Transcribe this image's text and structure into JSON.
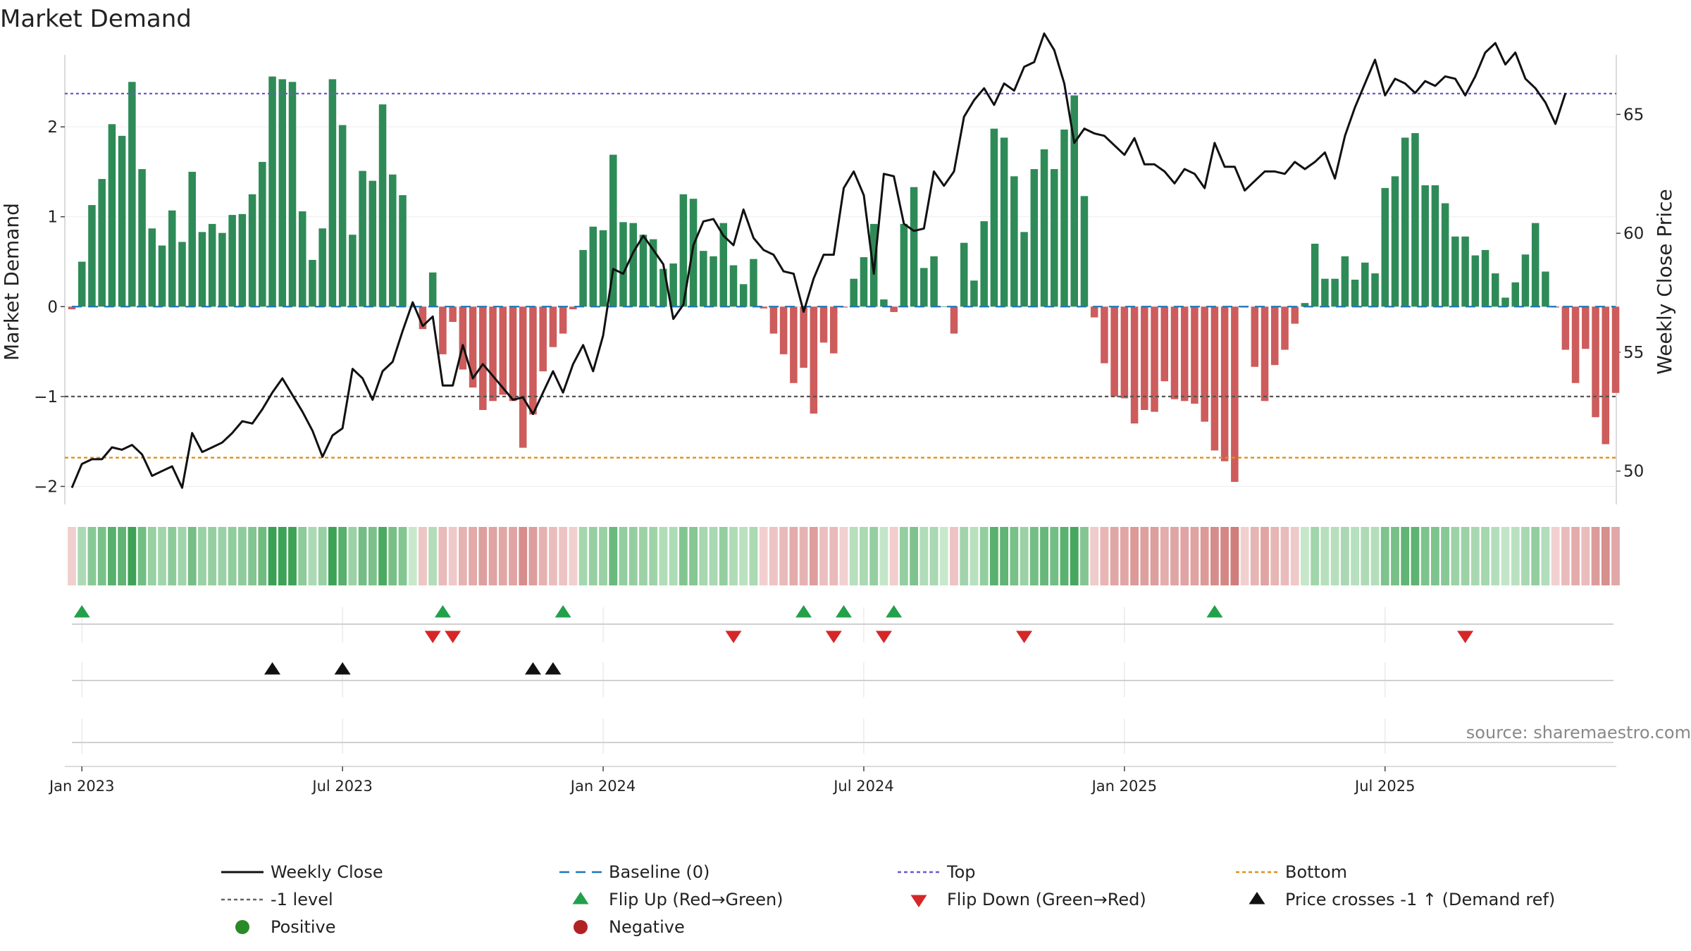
{
  "chart_data": {
    "type": "bar",
    "title": "Market Demand",
    "ylabel": "Market Demand",
    "y2label": "Weekly Close Price",
    "ylim": [
      -2.2,
      2.8
    ],
    "y2lim": [
      48.6,
      67.5
    ],
    "yticks": [
      -2,
      -1,
      0,
      1,
      2
    ],
    "y2ticks": [
      50,
      55,
      60,
      65
    ],
    "x_ticks": [
      {
        "label": "Jan 2023",
        "week": 1
      },
      {
        "label": "Jul 2023",
        "week": 27
      },
      {
        "label": "Jan 2024",
        "week": 53
      },
      {
        "label": "Jul 2024",
        "week": 79
      },
      {
        "label": "Jan 2025",
        "week": 105
      },
      {
        "label": "Jul 2025",
        "week": 131
      }
    ],
    "reference_lines": {
      "top": 2.37,
      "bottom": -1.68,
      "minus_one": -1,
      "baseline": 0
    },
    "demand": [
      -0.03,
      0.5,
      1.13,
      1.42,
      2.03,
      1.9,
      2.5,
      1.53,
      0.87,
      0.68,
      1.07,
      0.72,
      1.5,
      0.83,
      0.92,
      0.82,
      1.02,
      1.03,
      1.25,
      1.61,
      2.56,
      2.53,
      2.5,
      1.06,
      0.52,
      0.87,
      2.53,
      2.02,
      0.8,
      1.51,
      1.4,
      2.25,
      1.47,
      1.24,
      0.0,
      -0.25,
      0.38,
      -0.53,
      -0.17,
      -0.7,
      -0.9,
      -1.15,
      -1.05,
      -0.98,
      -1.05,
      -1.57,
      -1.2,
      -0.72,
      -0.45,
      -0.3,
      -0.03,
      0.63,
      0.89,
      0.85,
      1.69,
      0.94,
      0.93,
      0.8,
      0.75,
      0.42,
      0.48,
      1.25,
      1.2,
      0.62,
      0.56,
      0.93,
      0.46,
      0.25,
      0.53,
      -0.02,
      -0.3,
      -0.53,
      -0.85,
      -0.68,
      -1.19,
      -0.4,
      -0.52,
      -0.01,
      0.31,
      0.55,
      0.92,
      0.08,
      -0.06,
      0.92,
      1.33,
      0.43,
      0.56,
      0.0,
      -0.3,
      0.71,
      0.29,
      0.95,
      1.98,
      1.88,
      1.45,
      0.83,
      1.53,
      1.75,
      1.53,
      1.97,
      2.35,
      1.23,
      -0.12,
      -0.63,
      -1.0,
      -1.02,
      -1.3,
      -1.15,
      -1.17,
      -0.83,
      -1.03,
      -1.05,
      -1.08,
      -1.28,
      -1.6,
      -1.72,
      -1.95,
      -0.01,
      -0.67,
      -1.05,
      -0.65,
      -0.48,
      -0.19,
      0.04,
      0.7,
      0.31,
      0.31,
      0.56,
      0.3,
      0.49,
      0.37,
      1.32,
      1.45,
      1.88,
      1.93,
      1.35,
      1.35,
      1.15,
      0.78,
      0.78,
      0.57,
      0.63,
      0.37,
      0.1,
      0.27,
      0.58,
      0.93,
      0.39,
      -0.01,
      -0.48,
      -0.85,
      -0.47,
      -1.23,
      -1.53,
      -0.96
    ],
    "weekly_close": [
      49.3,
      50.3,
      50.5,
      50.5,
      51.0,
      50.9,
      51.1,
      50.7,
      49.8,
      50.0,
      50.2,
      49.3,
      51.6,
      50.8,
      51.0,
      51.2,
      51.6,
      52.1,
      52.0,
      52.6,
      53.3,
      53.9,
      53.2,
      52.5,
      51.7,
      50.6,
      51.5,
      51.8,
      54.3,
      53.9,
      53.0,
      54.2,
      54.6,
      55.9,
      57.1,
      56.1,
      56.5,
      53.6,
      53.6,
      55.3,
      53.9,
      54.5,
      54.0,
      53.5,
      53.0,
      53.1,
      52.4,
      53.3,
      54.2,
      53.3,
      54.5,
      55.3,
      54.2,
      55.7,
      58.5,
      58.3,
      59.2,
      59.9,
      59.3,
      58.7,
      56.4,
      57.0,
      59.5,
      60.5,
      60.6,
      59.9,
      59.5,
      61.0,
      59.8,
      59.3,
      59.1,
      58.4,
      58.3,
      56.7,
      58.1,
      59.1,
      59.1,
      61.9,
      62.6,
      61.6,
      58.3,
      62.5,
      62.4,
      60.4,
      60.1,
      60.2,
      62.6,
      62.0,
      62.6,
      64.9,
      65.6,
      66.1,
      65.4,
      66.3,
      66.0,
      67.0,
      67.2,
      68.4,
      67.7,
      66.3,
      63.8,
      64.4,
      64.2,
      64.1,
      63.7,
      63.3,
      64.0,
      62.9,
      62.9,
      62.6,
      62.1,
      62.7,
      62.5,
      61.9,
      63.8,
      62.8,
      62.8,
      61.8,
      62.2,
      62.6,
      62.6,
      62.5,
      63.0,
      62.7,
      63.0,
      63.4,
      62.3,
      64.1,
      65.3,
      66.3,
      67.3,
      65.8,
      66.5,
      66.3,
      65.9,
      66.4,
      66.2,
      66.6,
      66.5,
      65.8,
      66.6,
      67.6,
      68.0,
      67.1,
      67.6,
      66.5,
      66.1,
      65.5,
      64.6,
      65.9
    ],
    "flip_up_weeks": [
      1,
      37,
      49,
      73,
      77,
      82,
      114
    ],
    "flip_down_weeks": [
      36,
      38,
      66,
      76,
      81,
      95,
      139
    ],
    "price_cross_weeks": [
      20,
      27,
      46,
      48
    ],
    "legend": [
      {
        "label": "Weekly Close",
        "kind": "line",
        "color": "#111111"
      },
      {
        "label": "Baseline (0)",
        "kind": "dash",
        "color": "#1f77b4"
      },
      {
        "label": "Top",
        "kind": "dot",
        "color": "#6a5acd"
      },
      {
        "label": "Bottom",
        "kind": "dot",
        "color": "#e0901a"
      },
      {
        "label": "-1 level",
        "kind": "dot",
        "color": "#666666"
      },
      {
        "label": "Flip Up (Red→Green)",
        "kind": "tri-up",
        "color": "#22a04a"
      },
      {
        "label": "Flip Down (Green→Red)",
        "kind": "tri-down",
        "color": "#d62728"
      },
      {
        "label": "Price crosses -1 ↑ (Demand ref)",
        "kind": "tri-up",
        "color": "#111111"
      },
      {
        "label": "Positive",
        "kind": "circle",
        "color": "#2a8a2a"
      },
      {
        "label": "Negative",
        "kind": "circle",
        "color": "#b22222"
      }
    ],
    "colors": {
      "positive_bar": "#2e8b57",
      "negative_bar": "#cd5c5c"
    }
  },
  "source": "source: sharemaestro.com"
}
